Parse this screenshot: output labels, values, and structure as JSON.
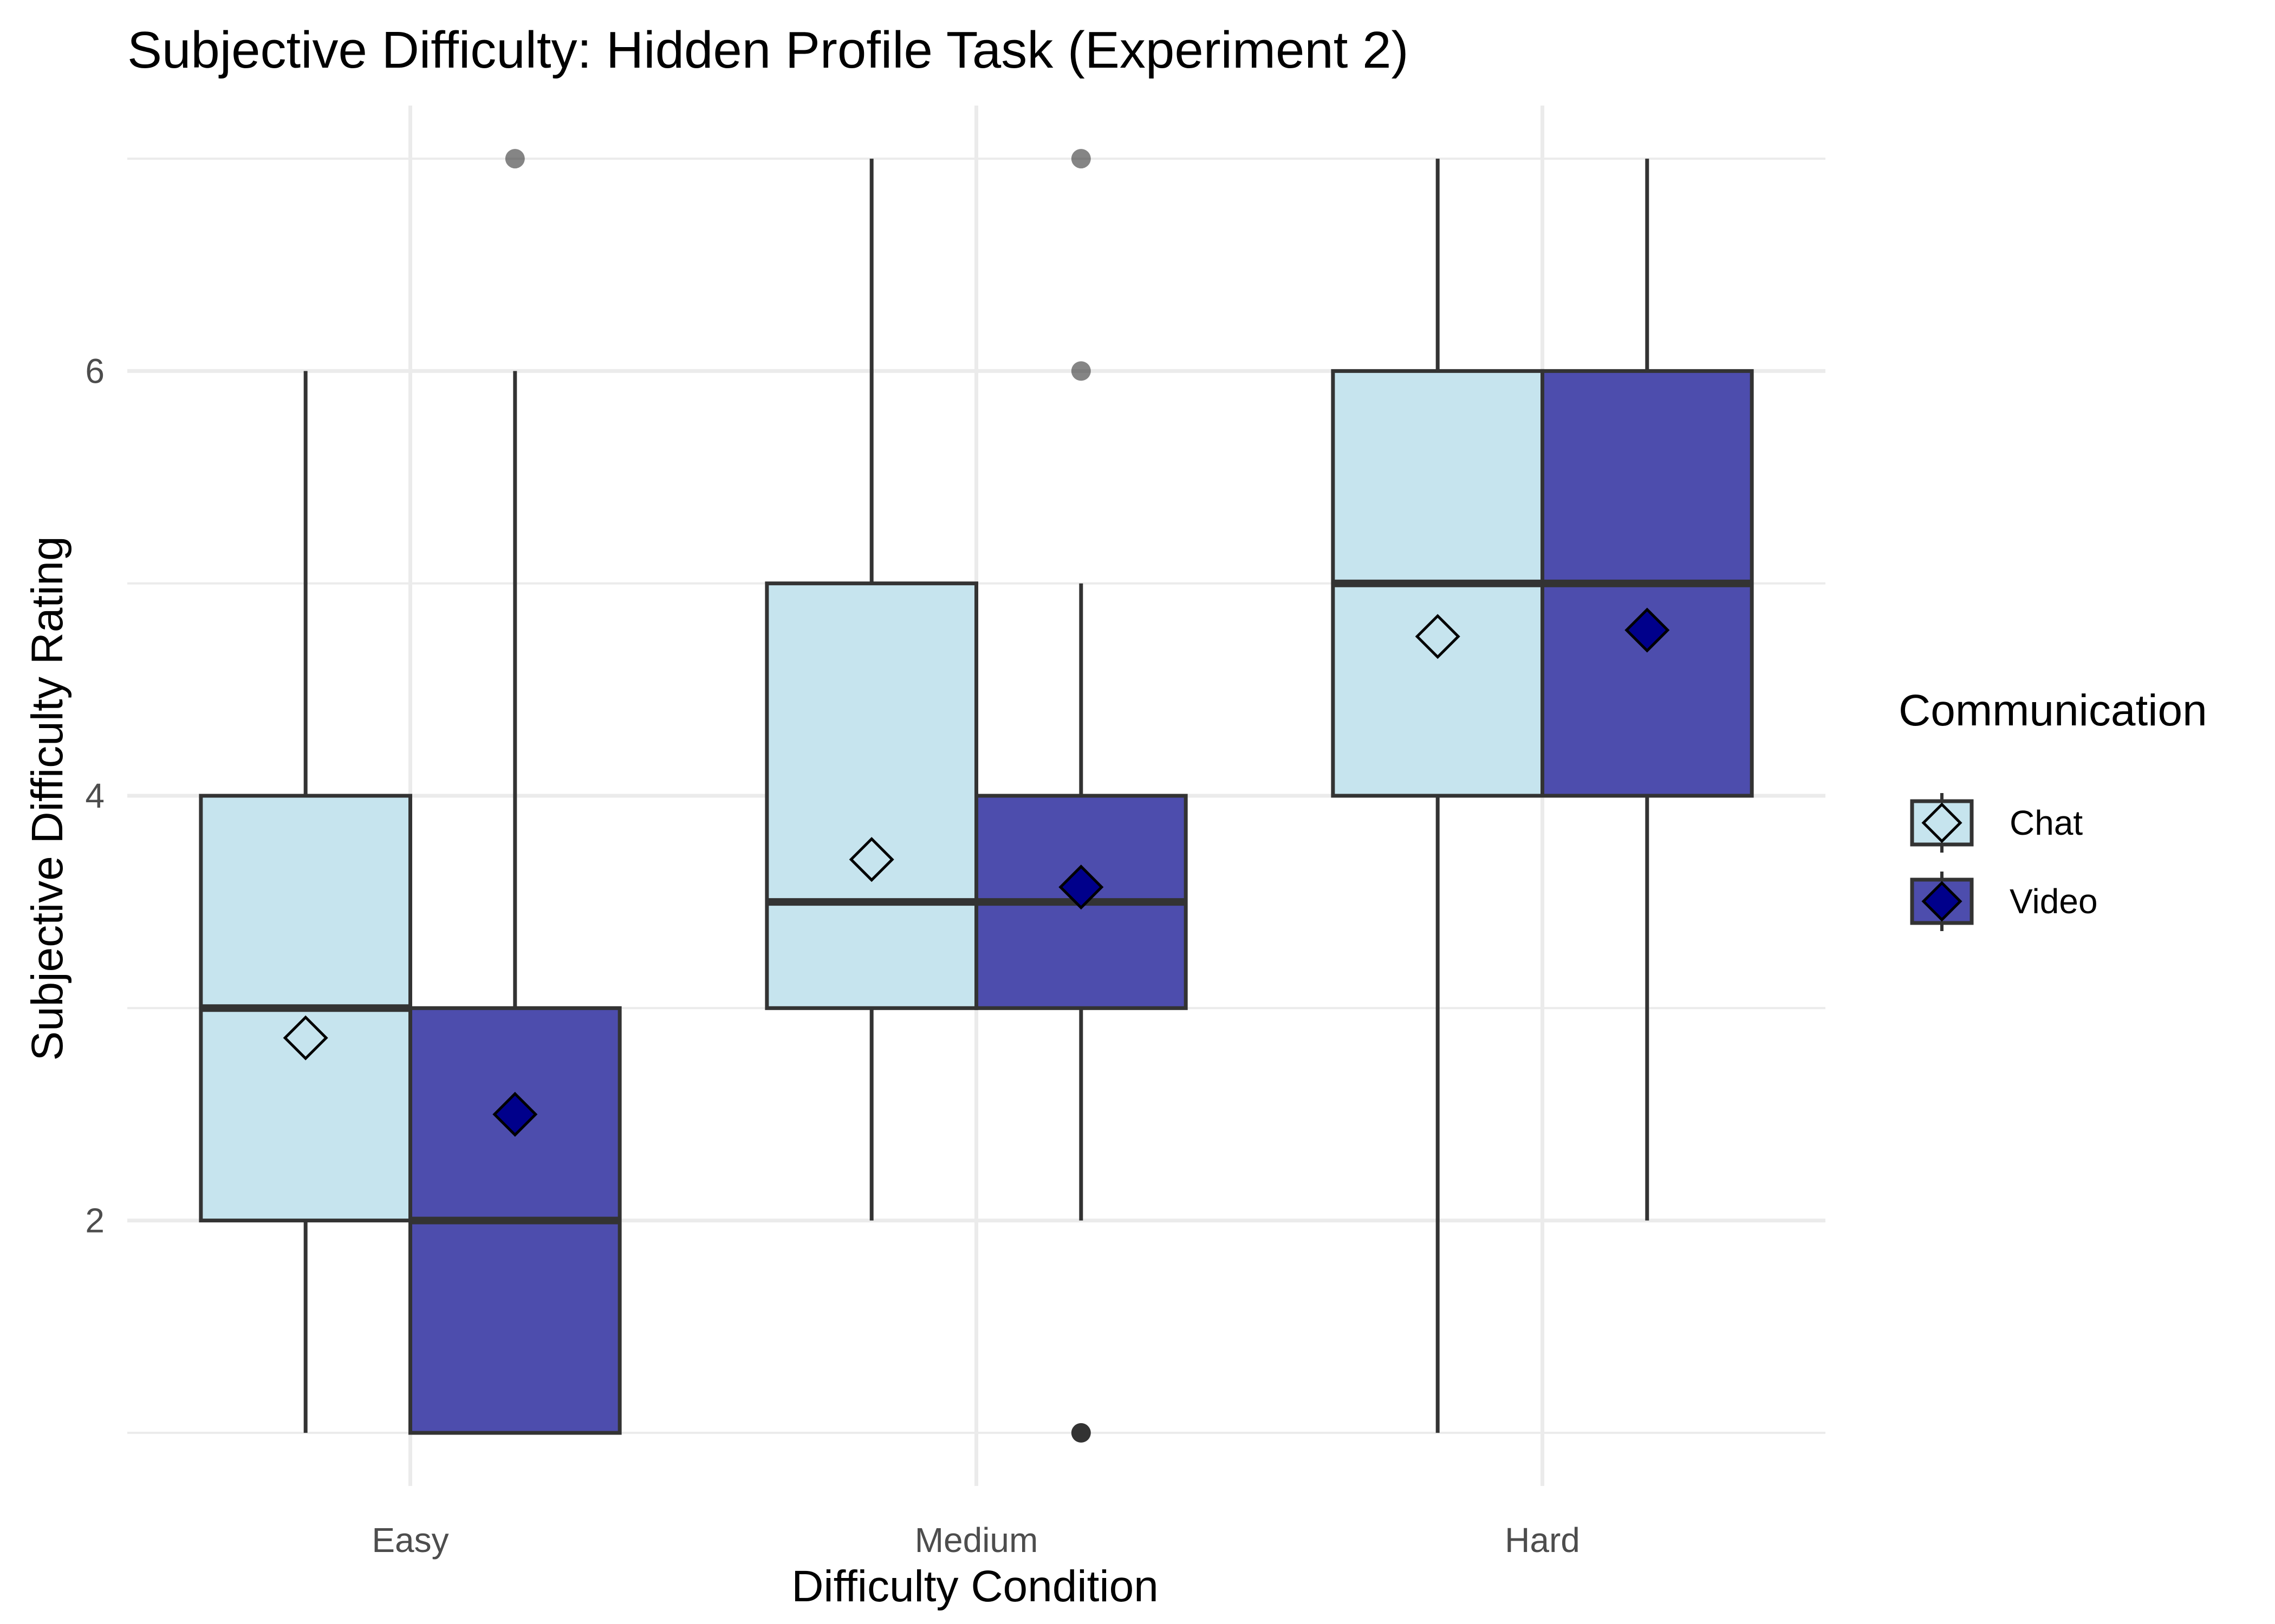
{
  "chart_data": {
    "type": "boxplot",
    "title": "Subjective Difficulty: Hidden Profile Task (Experiment 2)",
    "xlabel": "Difficulty Condition",
    "ylabel": "Subjective Difficulty Rating",
    "categories": [
      "Easy",
      "Medium",
      "Hard"
    ],
    "ylim": [
      0.75,
      7.25
    ],
    "yticks": [
      2,
      4,
      6
    ],
    "grid": true,
    "legend": {
      "title": "Communication",
      "placement": "right"
    },
    "series": [
      {
        "name": "Chat",
        "fill": "#c6e4ee",
        "mean_marker_fill": "#c6e4ee",
        "boxes": [
          {
            "category": "Easy",
            "min": 1,
            "q1": 2,
            "median": 3,
            "q3": 4,
            "max": 6,
            "mean": 2.86,
            "outliers": []
          },
          {
            "category": "Medium",
            "min": 2,
            "q1": 3,
            "median": 3.5,
            "q3": 5,
            "max": 7,
            "mean": 3.7,
            "outliers": []
          },
          {
            "category": "Hard",
            "min": 1,
            "q1": 4,
            "median": 5,
            "q3": 6,
            "max": 7,
            "mean": 4.75,
            "outliers": []
          }
        ]
      },
      {
        "name": "Video",
        "fill": "#4d4dad",
        "mean_marker_fill": "#00008b",
        "boxes": [
          {
            "category": "Easy",
            "min": 1,
            "q1": 1,
            "median": 2,
            "q3": 3,
            "max": 6,
            "mean": 2.5,
            "outliers": [
              7
            ]
          },
          {
            "category": "Medium",
            "min": 2,
            "q1": 3,
            "median": 3.5,
            "q3": 4,
            "max": 5,
            "mean": 3.57,
            "outliers": [
              7,
              6,
              1
            ]
          },
          {
            "category": "Hard",
            "min": 2,
            "q1": 4,
            "median": 5,
            "q3": 6,
            "max": 7,
            "mean": 4.78,
            "outliers": []
          }
        ]
      }
    ],
    "colors": {
      "line": "#333333",
      "grid": "#ebebeb",
      "outlier": "#333333"
    }
  }
}
